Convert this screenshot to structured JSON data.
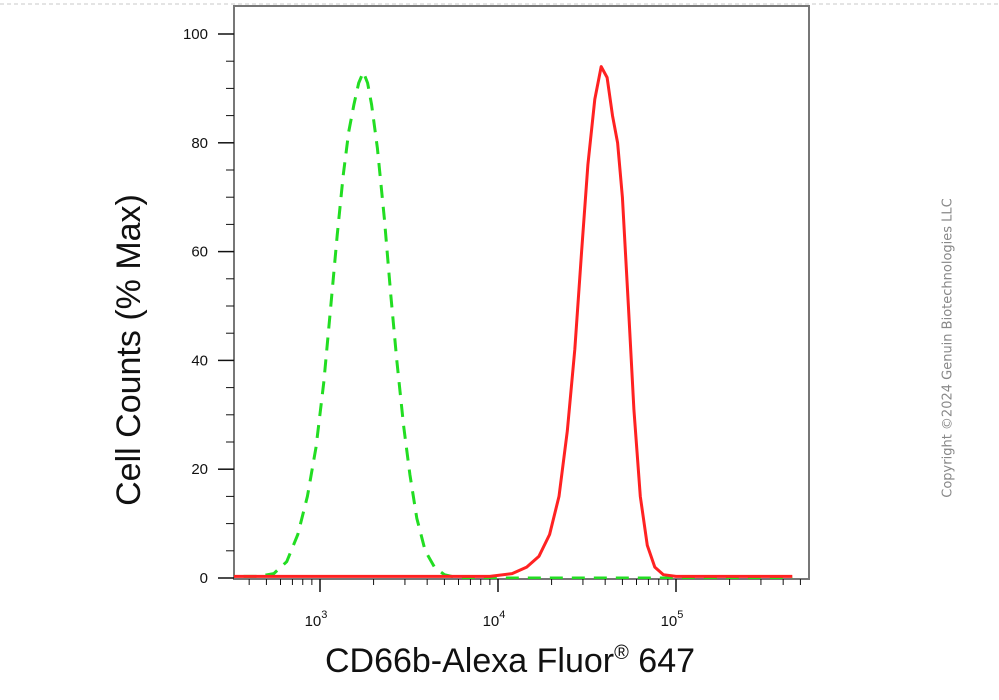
{
  "chart_data": {
    "type": "line",
    "xlabel_base": "CD66b-Alexa Fluor",
    "xlabel_reg": "®",
    "xlabel_suffix": " 647",
    "ylabel": "Cell Counts (% Max)",
    "x_scale": "log",
    "xlim": [
      280,
      450000
    ],
    "ylim": [
      0,
      105
    ],
    "y_ticks": [
      0,
      20,
      40,
      60,
      80,
      100
    ],
    "x_tick_labels": [
      {
        "base": "10",
        "exp": "3",
        "value": 1000
      },
      {
        "base": "10",
        "exp": "4",
        "value": 10000
      },
      {
        "base": "10",
        "exp": "5",
        "value": 100000
      }
    ],
    "grid": false,
    "series": [
      {
        "color": "#22dd22",
        "dash": "dashed",
        "points": [
          [
            280,
            0.5
          ],
          [
            350,
            0.3
          ],
          [
            450,
            0.3
          ],
          [
            550,
            0.8
          ],
          [
            650,
            3
          ],
          [
            750,
            8
          ],
          [
            850,
            15
          ],
          [
            950,
            24
          ],
          [
            1050,
            36
          ],
          [
            1150,
            50
          ],
          [
            1250,
            63
          ],
          [
            1350,
            74
          ],
          [
            1450,
            82
          ],
          [
            1550,
            87
          ],
          [
            1650,
            91
          ],
          [
            1750,
            93
          ],
          [
            1850,
            91
          ],
          [
            1950,
            87
          ],
          [
            2100,
            79
          ],
          [
            2300,
            66
          ],
          [
            2500,
            52
          ],
          [
            2700,
            40
          ],
          [
            2950,
            28
          ],
          [
            3200,
            19
          ],
          [
            3500,
            11
          ],
          [
            3900,
            5
          ],
          [
            4400,
            2
          ],
          [
            5000,
            0.6
          ],
          [
            6000,
            0
          ],
          [
            8000,
            0
          ],
          [
            20000,
            0
          ],
          [
            60000,
            0
          ],
          [
            200000,
            0
          ],
          [
            450000,
            0
          ]
        ]
      },
      {
        "color": "#ff2222",
        "dash": "solid",
        "points": [
          [
            280,
            0.3
          ],
          [
            2000,
            0.3
          ],
          [
            5000,
            0.3
          ],
          [
            9000,
            0.3
          ],
          [
            12000,
            0.8
          ],
          [
            14500,
            2
          ],
          [
            17000,
            4
          ],
          [
            19500,
            8
          ],
          [
            22000,
            15
          ],
          [
            24500,
            27
          ],
          [
            27000,
            42
          ],
          [
            29500,
            60
          ],
          [
            32000,
            76
          ],
          [
            35000,
            88
          ],
          [
            38000,
            94
          ],
          [
            41000,
            92
          ],
          [
            44000,
            85
          ],
          [
            47000,
            80
          ],
          [
            50000,
            70
          ],
          [
            54000,
            50
          ],
          [
            58000,
            31
          ],
          [
            63000,
            15
          ],
          [
            69000,
            6
          ],
          [
            76000,
            2
          ],
          [
            85000,
            0.6
          ],
          [
            100000,
            0.3
          ],
          [
            200000,
            0.3
          ],
          [
            450000,
            0.3
          ]
        ]
      }
    ]
  },
  "watermark": "Copyright ©2024 Genuin Biotechnologies LLC"
}
